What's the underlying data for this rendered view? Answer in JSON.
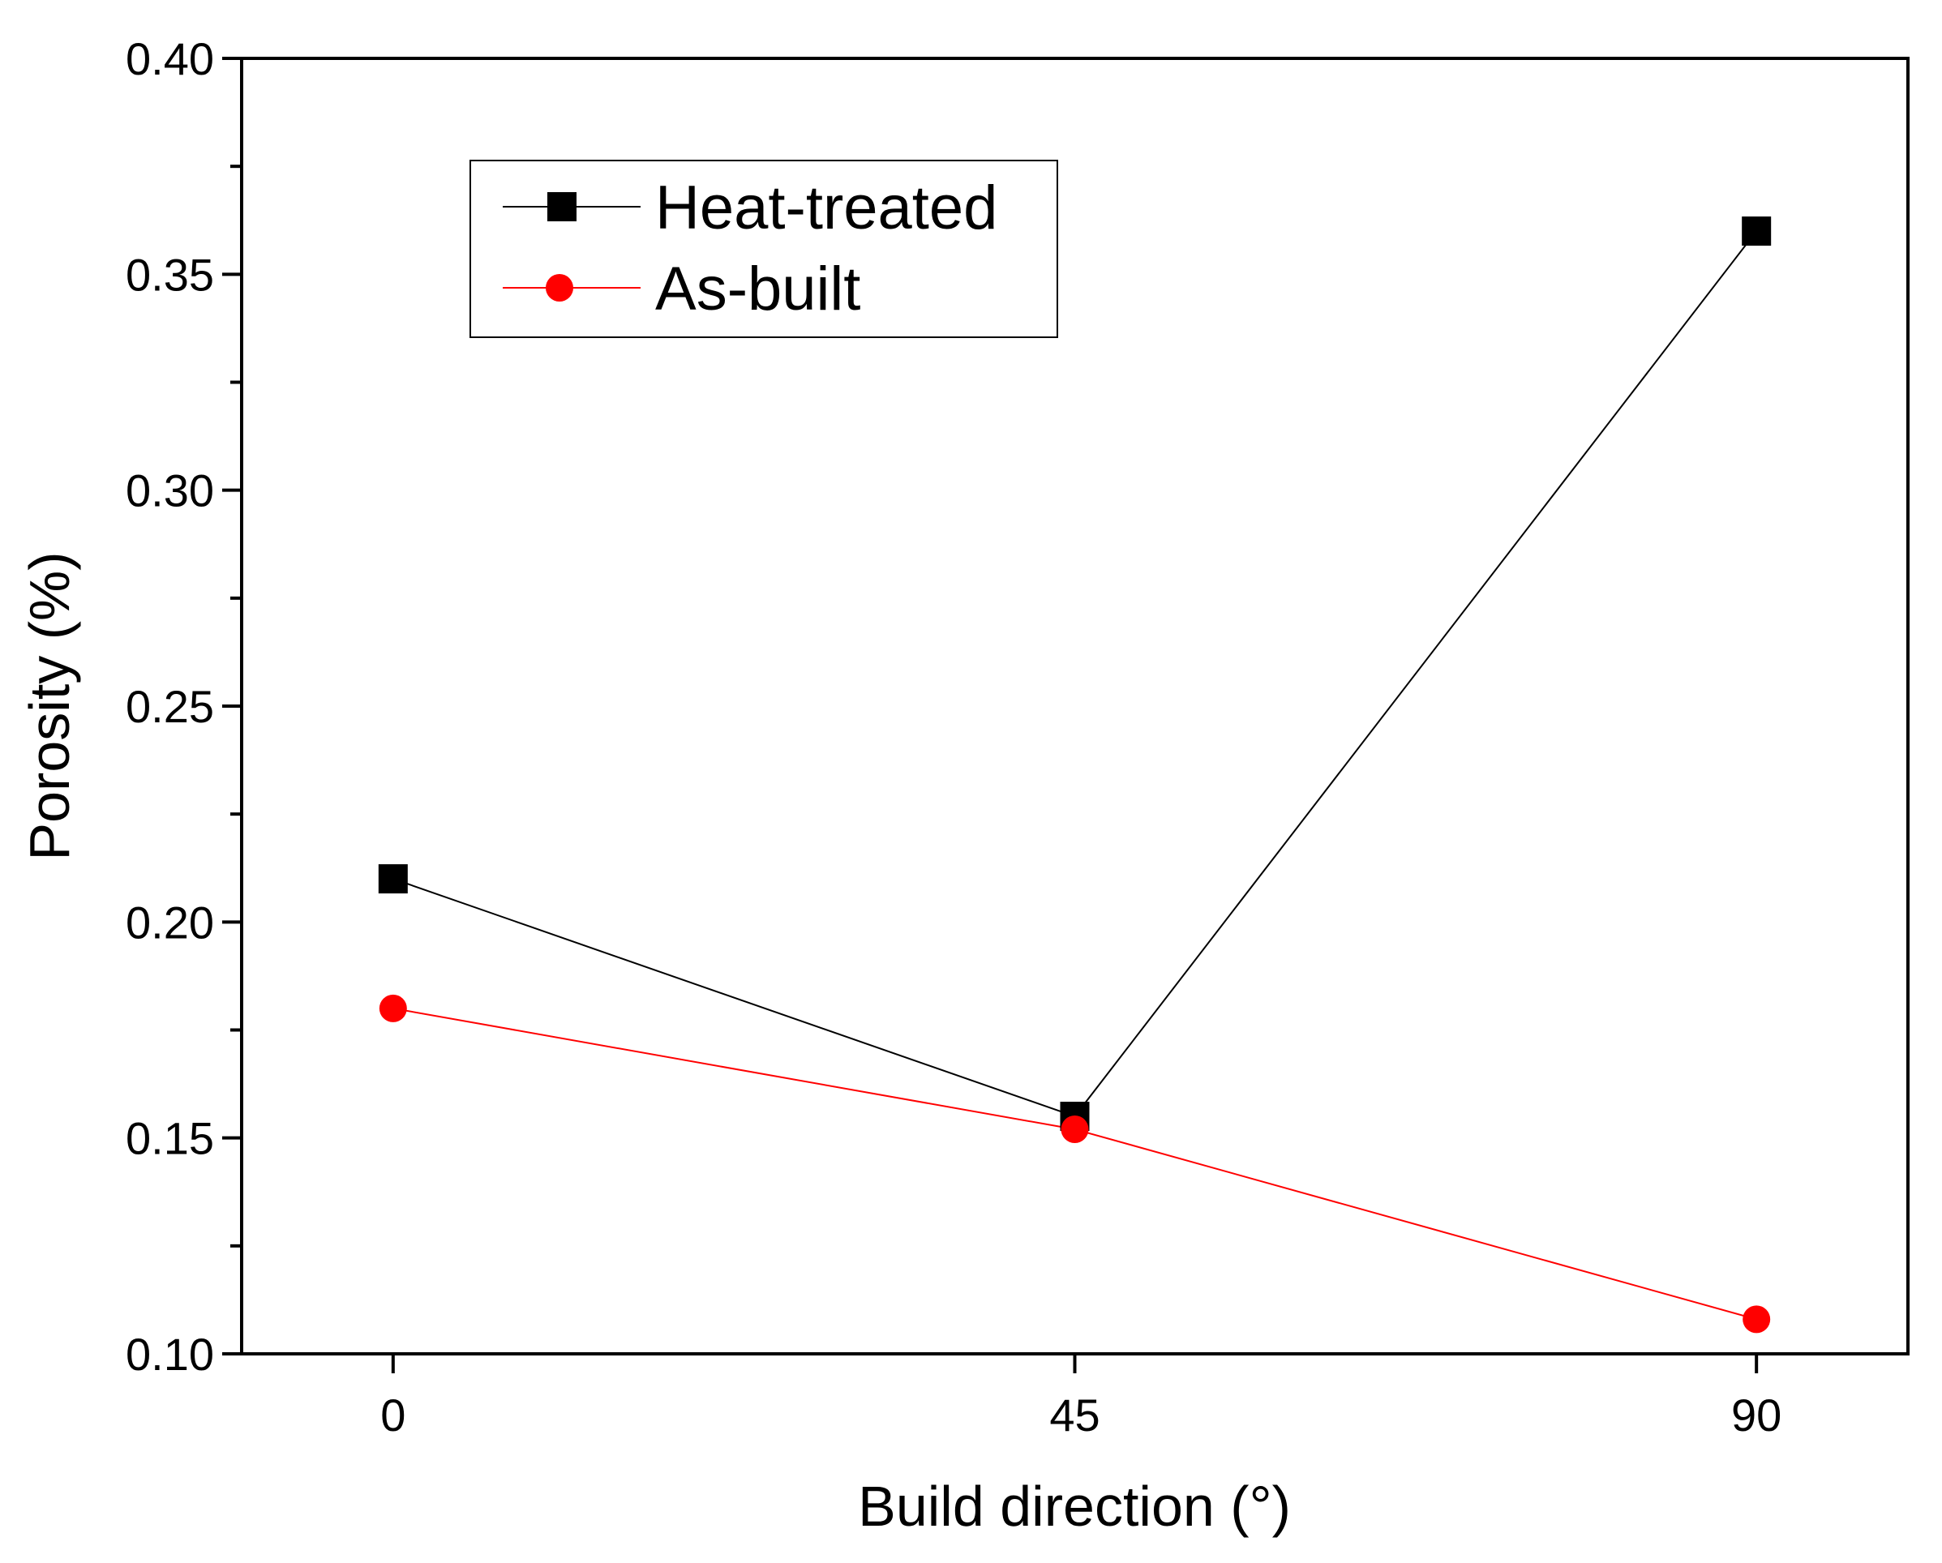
{
  "chart_data": {
    "type": "line",
    "x": [
      0,
      45,
      90
    ],
    "x_tick_labels": [
      "0",
      "45",
      "90"
    ],
    "xlabel": "Build direction (°)",
    "ylabel": "Porosity (%)",
    "xlim": [
      -10,
      100
    ],
    "ylim": [
      0.1,
      0.4
    ],
    "y_ticks": [
      0.1,
      0.15,
      0.2,
      0.25,
      0.3,
      0.35,
      0.4
    ],
    "y_tick_labels": [
      "0.10",
      "0.15",
      "0.20",
      "0.25",
      "0.30",
      "0.35",
      "0.40"
    ],
    "grid": false,
    "legend_position": "top-left",
    "series": [
      {
        "name": "Heat-treated",
        "values": [
          0.21,
          0.155,
          0.36
        ],
        "color": "#000000",
        "marker": "square"
      },
      {
        "name": "As-built",
        "values": [
          0.18,
          0.152,
          0.108
        ],
        "color": "#ff0000",
        "marker": "circle"
      }
    ]
  }
}
